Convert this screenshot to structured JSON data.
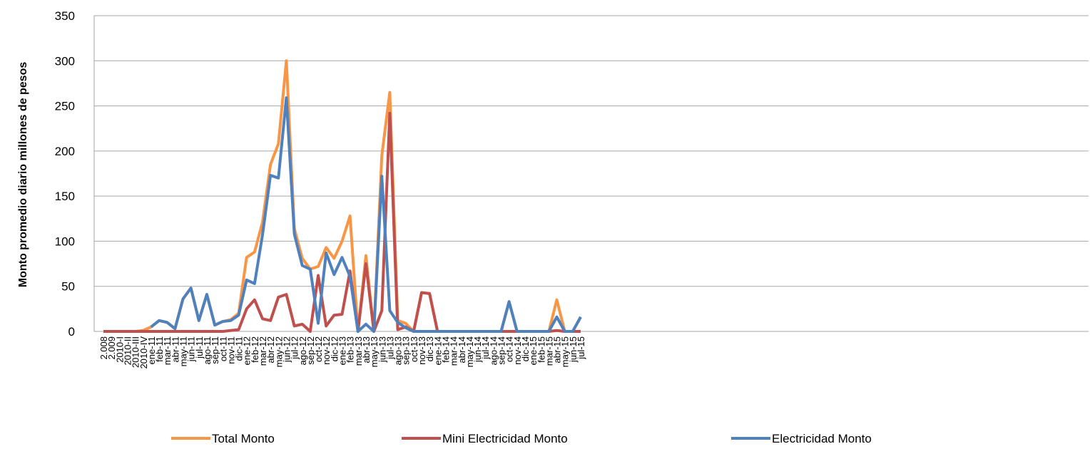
{
  "chart_data": {
    "type": "line",
    "y_label": "Monto promedio diario millones de pesos",
    "categories": [
      "2.008",
      "2.009",
      "2010-I",
      "2010-II",
      "2010-III",
      "2010-IV",
      "ene-11",
      "feb-11",
      "mar-11",
      "abr-11",
      "may-11",
      "jun-11",
      "jul-11",
      "ago-11",
      "sep-11",
      "oct-11",
      "nov-11",
      "dic-11",
      "ene-12",
      "feb-12",
      "mar-12",
      "abr-12",
      "may-12",
      "jun-12",
      "jul-12",
      "ago-12",
      "sep-12",
      "oct-12",
      "nov-12",
      "dic-12",
      "ene-13",
      "feb-13",
      "mar-13",
      "abr-13",
      "may-13",
      "jun-13",
      "jul-13",
      "ago-13",
      "sep-13",
      "oct-13",
      "nov-13",
      "dic-13",
      "ene-14",
      "feb-14",
      "mar-14",
      "abr-14",
      "may-14",
      "jun-14",
      "jul-14",
      "ago-14",
      "sep-14",
      "oct-14",
      "nov-14",
      "dic-14",
      "ene-15",
      "feb-15",
      "mar-15",
      "abr-15",
      "may-15",
      "jun-15",
      "jul-15"
    ],
    "series": [
      {
        "name": "Total Monto",
        "color": "#f79646",
        "values": [
          0,
          0,
          0,
          0,
          0,
          1,
          5,
          12,
          10,
          3,
          36,
          48,
          12,
          41,
          7,
          11,
          13,
          20,
          82,
          88,
          121,
          185,
          208,
          300,
          114,
          81,
          69,
          72,
          93,
          81,
          100,
          128,
          0,
          84,
          0,
          195,
          265,
          12,
          9,
          0,
          43,
          42,
          0,
          0,
          0,
          0,
          0,
          0,
          0,
          0,
          0,
          33,
          0,
          0,
          0,
          0,
          0,
          35,
          0,
          0,
          16
        ]
      },
      {
        "name": "Mini Electricidad Monto",
        "color": "#c0504d",
        "values": [
          0,
          0,
          0,
          0,
          0,
          0,
          0,
          0,
          0,
          0,
          0,
          0,
          0,
          0,
          0,
          0,
          1,
          2,
          25,
          35,
          14,
          12,
          38,
          41,
          6,
          8,
          0,
          62,
          6,
          18,
          19,
          67,
          0,
          75,
          0,
          23,
          242,
          2,
          5,
          0,
          43,
          42,
          0,
          0,
          0,
          0,
          0,
          0,
          0,
          0,
          0,
          0,
          0,
          0,
          0,
          0,
          0,
          1,
          0,
          0,
          0
        ]
      },
      {
        "name": "Electricidad Monto",
        "color": "#4f81bd",
        "values": [
          null,
          null,
          null,
          null,
          null,
          null,
          5,
          12,
          10,
          3,
          36,
          48,
          12,
          41,
          7,
          11,
          12,
          18,
          57,
          53,
          107,
          173,
          170,
          259,
          108,
          73,
          69,
          9,
          87,
          63,
          82,
          61,
          0,
          8,
          0,
          172,
          23,
          10,
          4,
          0,
          0,
          0,
          0,
          0,
          0,
          0,
          0,
          0,
          0,
          0,
          0,
          33,
          0,
          0,
          0,
          0,
          0,
          16,
          0,
          0,
          16
        ]
      }
    ],
    "ylim": [
      0,
      350
    ],
    "yticks": [
      0,
      50,
      100,
      150,
      200,
      250,
      300,
      350
    ],
    "grid": true,
    "legend": "bottom"
  }
}
